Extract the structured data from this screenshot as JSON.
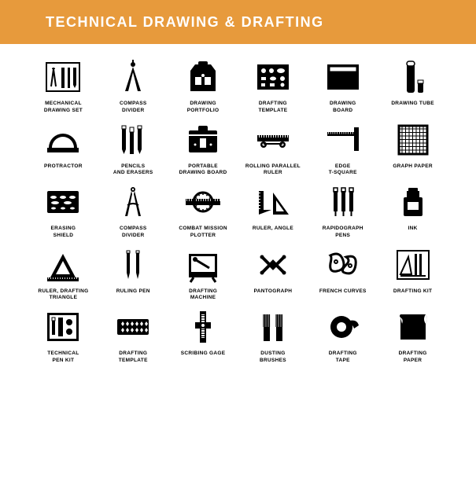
{
  "banner": {
    "title": "TECHNICAL DRAWING & DRAFTING",
    "bg_color": "#e79a3c",
    "text_color": "#ffffff"
  },
  "icon_color": "#000000",
  "grid": {
    "cols": 6,
    "rows": 5
  },
  "items": [
    {
      "id": "mechanical-drawing-set",
      "label": "MECHANICAL\nDRAWING  SET"
    },
    {
      "id": "compass-divider",
      "label": "COMPASS\nDIVIDER"
    },
    {
      "id": "drawing-portfolio",
      "label": "DRAWING\nPORTFOLIO"
    },
    {
      "id": "drafting-template",
      "label": "DRAFTING\nTEMPLATE"
    },
    {
      "id": "drawing-board",
      "label": "DRAWING\nBOARD"
    },
    {
      "id": "drawing-tube",
      "label": "DRAWING TUBE"
    },
    {
      "id": "protractor",
      "label": "PROTRACTOR"
    },
    {
      "id": "pencils-and-erasers",
      "label": "PENCILS\nAND ERASERS"
    },
    {
      "id": "portable-drawing-board",
      "label": "PORTABLE\nDRAWING BOARD"
    },
    {
      "id": "rolling-parallel-ruler",
      "label": "ROLLING PARALLEL\nRULER"
    },
    {
      "id": "edge-t-square",
      "label": "EDGE\nT-SQUARE"
    },
    {
      "id": "graph-paper",
      "label": "GRAPH PAPER"
    },
    {
      "id": "erasing-shield",
      "label": "ERASING\nSHIELD"
    },
    {
      "id": "compass-divider-2",
      "label": "COMPASS\nDIVIDER"
    },
    {
      "id": "combat-mission-plotter",
      "label": "COMBAT MISSION\nPLOTTER"
    },
    {
      "id": "ruler-angle",
      "label": "RULER,  ANGLE"
    },
    {
      "id": "rapidograph-pens",
      "label": "RAPIDOGRAPH\nPENS"
    },
    {
      "id": "ink",
      "label": "INK"
    },
    {
      "id": "ruler-drafting-triangle",
      "label": "RULER, DRAFTING\nTRIANGLE"
    },
    {
      "id": "ruling-pen",
      "label": "RULING PEN"
    },
    {
      "id": "drafting-machine",
      "label": "DRAFTING\nMACHINE"
    },
    {
      "id": "pantograph",
      "label": "PANTOGRAPH"
    },
    {
      "id": "french-curves",
      "label": "FRENCH CURVES"
    },
    {
      "id": "drafting-kit",
      "label": "DRAFTING KIT"
    },
    {
      "id": "technical-pen-kit",
      "label": "TECHNICAL\nPEN KIT"
    },
    {
      "id": "drafting-template-2",
      "label": "DRAFTING\nTEMPLATE"
    },
    {
      "id": "scribing-gage",
      "label": "SCRIBING GAGE"
    },
    {
      "id": "dusting-brushes",
      "label": "DUSTING\nBRUSHES"
    },
    {
      "id": "drafting-tape",
      "label": "DRAFTING\nTAPE"
    },
    {
      "id": "drafting-paper",
      "label": "DRAFTING\nPAPER"
    }
  ]
}
